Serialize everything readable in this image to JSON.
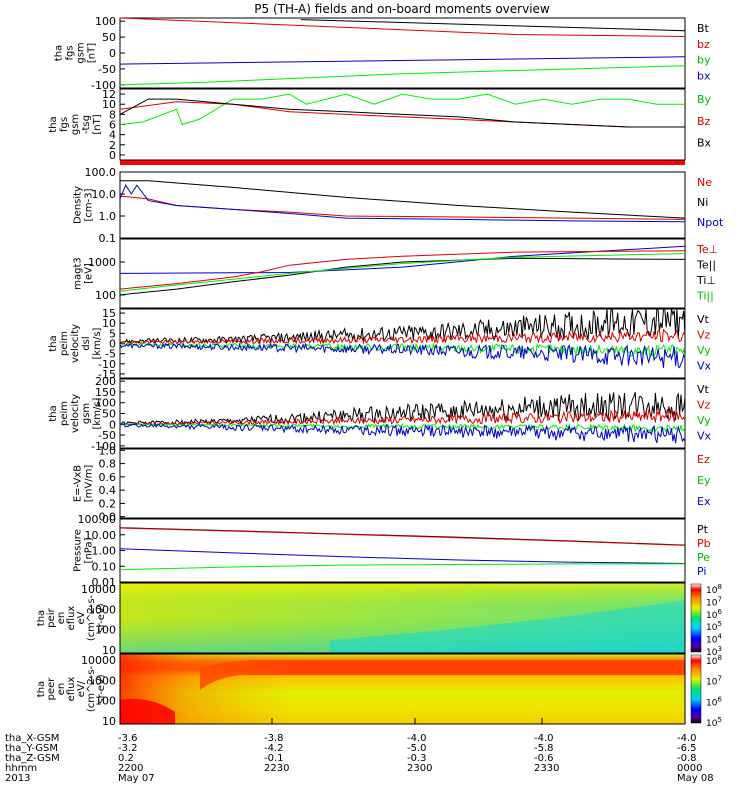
{
  "chart_data": {
    "type": "line",
    "title": "P5 (TH-A) fields and on-board moments overview",
    "panels": [
      {
        "ylabel": [
          "tha",
          "fgs",
          "gsm",
          "[nT]"
        ],
        "yticks": [
          "100",
          "50",
          "0",
          "-50",
          "-100"
        ],
        "ylim": [
          -110,
          110
        ],
        "log": false,
        "legend": [
          {
            "label": "Bt",
            "color": "#000000"
          },
          {
            "label": "bz",
            "color": "#dd0000"
          },
          {
            "label": "by",
            "color": "#00bb00"
          },
          {
            "label": "bx",
            "color": "#0000cc"
          }
        ],
        "series": [
          {
            "color": "#000000",
            "x": [
              0.32,
              1.0
            ],
            "y": [
              105,
              70
            ]
          },
          {
            "color": "#dd0000",
            "x": [
              0,
              0.7,
              1.0
            ],
            "y": [
              110,
              58,
              52
            ]
          },
          {
            "color": "#0000cc",
            "x": [
              0,
              1.0
            ],
            "y": [
              -35,
              -12
            ]
          },
          {
            "color": "#00ee00",
            "x": [
              0,
              0.15,
              0.5,
              1.0
            ],
            "y": [
              -100,
              -92,
              -65,
              -40
            ]
          }
        ]
      },
      {
        "ylabel": [
          "tha",
          "fgs",
          "gsm",
          "-tsg",
          "[nT]"
        ],
        "yticks": [
          "12",
          "10",
          "8",
          "6",
          "4",
          "2",
          "0"
        ],
        "ylim": [
          -1,
          13
        ],
        "log": false,
        "legend": [
          {
            "label": "By",
            "color": "#00bb00"
          },
          {
            "label": "Bz",
            "color": "#dd0000"
          },
          {
            "label": "Bx",
            "color": "#000000"
          }
        ],
        "series": [
          {
            "color": "#00ee00",
            "x": [
              0,
              0.04,
              0.1,
              0.11,
              0.14,
              0.2,
              0.25,
              0.3,
              0.33,
              0.4,
              0.45,
              0.5,
              0.55,
              0.6,
              0.65,
              0.7,
              0.75,
              0.8,
              0.85,
              0.9,
              0.95,
              1.0
            ],
            "y": [
              6,
              6.5,
              9,
              6,
              7,
              11,
              11,
              12,
              10,
              12,
              10,
              12,
              11,
              11,
              12,
              10,
              11,
              10,
              11,
              11,
              10,
              10
            ]
          },
          {
            "color": "#dd0000",
            "x": [
              0,
              0.1,
              0.2,
              0.3,
              0.4,
              0.5,
              0.6,
              0.7,
              0.8,
              0.9,
              1.0
            ],
            "y": [
              9,
              10.5,
              10,
              8.5,
              8,
              7.5,
              7,
              6.5,
              6,
              5.5,
              5.5
            ]
          },
          {
            "color": "#000000",
            "x": [
              0,
              0.05,
              0.1,
              0.2,
              0.3,
              0.4,
              0.5,
              0.6,
              0.7,
              0.8,
              0.9,
              1.0
            ],
            "y": [
              8,
              11,
              11,
              10,
              9,
              8.5,
              8,
              7.5,
              6.5,
              6,
              5.5,
              5.5
            ]
          }
        ]
      },
      {
        "ylabel": [
          "Density",
          "[cm-3]"
        ],
        "yticks": [
          "100.0",
          "10.0",
          "1.0",
          "0.1"
        ],
        "ylim": [
          0.1,
          100
        ],
        "log": true,
        "legend": [
          {
            "label": "Ne",
            "color": "#dd0000"
          },
          {
            "label": "Ni",
            "color": "#000000"
          },
          {
            "label": "Npot",
            "color": "#0000cc"
          }
        ],
        "series": [
          {
            "color": "#000000",
            "x": [
              0,
              0.05,
              0.2,
              0.4,
              0.6,
              0.8,
              1.0
            ],
            "y": [
              40,
              40,
              20,
              7,
              3,
              1.5,
              0.8
            ]
          },
          {
            "color": "#dd0000",
            "x": [
              0,
              0.05,
              0.1,
              0.2,
              0.3,
              0.4,
              0.6,
              0.8,
              1.0
            ],
            "y": [
              8,
              6,
              3,
              2,
              1.5,
              1.0,
              0.9,
              0.8,
              0.7
            ]
          },
          {
            "color": "#0000cc",
            "x": [
              0,
              0.01,
              0.02,
              0.03,
              0.05,
              0.1,
              0.2,
              0.3,
              0.4,
              0.6,
              0.8,
              1.0
            ],
            "y": [
              6,
              25,
              10,
              25,
              5,
              3,
              2,
              1.3,
              0.8,
              0.7,
              0.6,
              0.55
            ]
          }
        ]
      },
      {
        "ylabel": [
          "magt3",
          "[eV]"
        ],
        "yticks": [
          "1000",
          "100"
        ],
        "ylim": [
          40,
          5000
        ],
        "log": true,
        "legend": [
          {
            "label": "Te⊥",
            "color": "#dd0000"
          },
          {
            "label": "Te||",
            "color": "#000000"
          },
          {
            "label": "Ti⊥",
            "color": "#000000"
          },
          {
            "label": "Ti||",
            "color": "#00bb00"
          }
        ],
        "series": [
          {
            "color": "#0000cc",
            "x": [
              0,
              0.3,
              0.5,
              0.7,
              1.0
            ],
            "y": [
              450,
              480,
              700,
              1500,
              3000
            ]
          },
          {
            "color": "#dd0000",
            "x": [
              0,
              0.1,
              0.2,
              0.25,
              0.3,
              0.4,
              0.5,
              0.7,
              1.0
            ],
            "y": [
              150,
              220,
              350,
              500,
              800,
              1200,
              1500,
              2000,
              2200
            ]
          },
          {
            "color": "#000000",
            "x": [
              0,
              0.1,
              0.2,
              0.3,
              0.4,
              0.5,
              0.7,
              1.0
            ],
            "y": [
              100,
              150,
              250,
              400,
              700,
              1000,
              1300,
              1200
            ]
          },
          {
            "color": "#00ee00",
            "x": [
              0,
              0.1,
              0.3,
              0.5,
              0.7,
              1.0
            ],
            "y": [
              130,
              200,
              450,
              900,
              1400,
              1800
            ]
          }
        ]
      },
      {
        "ylabel": [
          "tha",
          "peim",
          "velocity",
          "dsl",
          "[km/s]"
        ],
        "yticks": [
          "15",
          "10",
          "5",
          "0",
          "-5",
          "-10",
          "-15"
        ],
        "ylim": [
          -17,
          17
        ],
        "log": false,
        "legend": [
          {
            "label": "Vt",
            "color": "#000000"
          },
          {
            "label": "Vz",
            "color": "#dd0000"
          },
          {
            "label": "Vy",
            "color": "#00bb00"
          },
          {
            "label": "Vx",
            "color": "#0000cc"
          }
        ],
        "series": [
          {
            "color": "#000000",
            "x": [
              0,
              0.2,
              0.4,
              0.6,
              0.8,
              1.0
            ],
            "y": [
              1,
              2,
              4,
              6,
              9,
              12
            ]
          },
          {
            "color": "#dd0000",
            "x": [
              0,
              0.5,
              1.0
            ],
            "y": [
              0.5,
              2,
              4
            ]
          },
          {
            "color": "#00ee00",
            "x": [
              0,
              0.5,
              1.0
            ],
            "y": [
              -0.5,
              -2,
              -4
            ]
          },
          {
            "color": "#0000cc",
            "x": [
              0,
              0.5,
              1.0
            ],
            "y": [
              -1,
              -3,
              -7
            ]
          }
        ]
      },
      {
        "ylabel": [
          "tha",
          "peim",
          "velocity",
          "gsm",
          "[km/s]"
        ],
        "yticks": [
          "200",
          "150",
          "100",
          "50",
          "0",
          "-50",
          "-100"
        ],
        "ylim": [
          -110,
          210
        ],
        "log": false,
        "legend": [
          {
            "label": "Vt",
            "color": "#000000"
          },
          {
            "label": "Vz",
            "color": "#dd0000"
          },
          {
            "label": "Vy",
            "color": "#00bb00"
          },
          {
            "label": "Vx",
            "color": "#0000cc"
          }
        ],
        "series": [
          {
            "color": "#000000",
            "x": [
              0,
              0.2,
              0.4,
              0.6,
              0.8,
              1.0
            ],
            "y": [
              5,
              15,
              40,
              60,
              80,
              90
            ]
          },
          {
            "color": "#dd0000",
            "x": [
              0,
              0.5,
              1.0
            ],
            "y": [
              0,
              20,
              40
            ]
          },
          {
            "color": "#00ee00",
            "x": [
              0,
              0.5,
              1.0
            ],
            "y": [
              0,
              -10,
              -20
            ]
          },
          {
            "color": "#0000cc",
            "x": [
              0,
              0.5,
              1.0
            ],
            "y": [
              -5,
              -30,
              -50
            ]
          }
        ]
      },
      {
        "ylabel": [
          "E=-VxB",
          "[mV/m]"
        ],
        "yticks": [
          "1.0",
          "0.8",
          "0.6",
          "0.4",
          "0.2",
          "0.0"
        ],
        "ylim": [
          -0.02,
          1.02
        ],
        "log": false,
        "legend": [
          {
            "label": "Ez",
            "color": "#dd0000"
          },
          {
            "label": "Ey",
            "color": "#00bb00"
          },
          {
            "label": "Ex",
            "color": "#0000cc"
          }
        ],
        "series": []
      },
      {
        "ylabel": [
          "Pressure",
          "[nPa]"
        ],
        "yticks": [
          "100.00",
          "10.00",
          "1.00",
          "0.10",
          "0.01"
        ],
        "ylim": [
          0.01,
          100
        ],
        "log": true,
        "legend": [
          {
            "label": "Pt",
            "color": "#000000"
          },
          {
            "label": "Pb",
            "color": "#dd0000"
          },
          {
            "label": "Pe",
            "color": "#00bb00"
          },
          {
            "label": "Pi",
            "color": "#0000cc"
          }
        ],
        "series": [
          {
            "color": "#000000",
            "x": [
              0,
              0.2,
              0.4,
              0.6,
              0.8,
              1.0
            ],
            "y": [
              28,
              18,
              11,
              7,
              4,
              2.2
            ]
          },
          {
            "color": "#dd0000",
            "x": [
              0,
              0.2,
              0.4,
              0.6,
              0.8,
              1.0
            ],
            "y": [
              27,
              17,
              10.5,
              6.5,
              3.8,
              2.1
            ]
          },
          {
            "color": "#0000cc",
            "x": [
              0,
              0.2,
              0.4,
              0.6,
              0.8,
              1.0
            ],
            "y": [
              1.3,
              0.7,
              0.4,
              0.25,
              0.18,
              0.15
            ]
          },
          {
            "color": "#00ee00",
            "x": [
              0,
              0.2,
              0.4,
              0.6,
              0.8,
              1.0
            ],
            "y": [
              0.06,
              0.09,
              0.12,
              0.13,
              0.14,
              0.14
            ]
          }
        ]
      }
    ],
    "spectrograms": [
      {
        "ylabel": [
          "tha",
          "peir",
          "en",
          "eflux",
          "eV",
          "(cm^2-s-",
          "sr-eV)"
        ],
        "yticks": [
          "10000",
          "1000",
          "100",
          "10"
        ],
        "colorbar": [
          "10^8",
          "10^7",
          "10^6",
          "10^5",
          "10^4",
          "10^3"
        ]
      },
      {
        "ylabel": [
          "tha",
          "peer",
          "en",
          "eflux",
          "eV/",
          "(cm^2-s-",
          "sr-eV)"
        ],
        "yticks": [
          "10000",
          "1000",
          "100",
          "10"
        ],
        "colorbar": [
          "10^8",
          "10^7",
          "10^6",
          "10^5"
        ]
      }
    ],
    "xaxis": {
      "rows": [
        {
          "label": "tha_X-GSM",
          "values": [
            "-3.6",
            "-3.8",
            "-4.0",
            "-4.0",
            "-4.0"
          ]
        },
        {
          "label": "tha_Y-GSM",
          "values": [
            "-3.2",
            "-4.2",
            "-5.0",
            "-5.8",
            "-6.5"
          ]
        },
        {
          "label": "tha_Z-GSM",
          "values": [
            "0.2",
            "-0.1",
            "-0.3",
            "-0.6",
            "-0.8"
          ]
        },
        {
          "label": "hhmm",
          "values": [
            "2200",
            "2230",
            "2300",
            "2330",
            "0000"
          ]
        },
        {
          "label": "2013",
          "values": [
            "May 07",
            "",
            "",
            "",
            "May 08"
          ]
        }
      ]
    }
  }
}
